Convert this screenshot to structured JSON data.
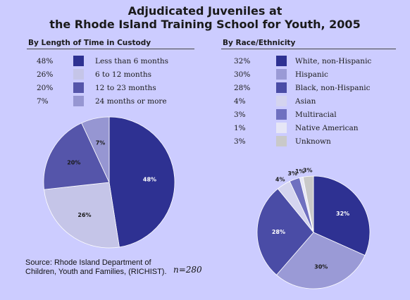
{
  "title_line1": "Adjudicated Juveniles at",
  "title_line2": "the Rhode Island Training School for Youth, 2005",
  "source": "Source: Rhode Island Department of Children, Youth and Families, (RICHIST).",
  "n_label": "n=280",
  "chart_data": [
    {
      "type": "pie",
      "title": "By Length of Time in Custody",
      "categories": [
        "Less than 6 months",
        "6 to 12 months",
        "12 to 23 months",
        "24 months or more"
      ],
      "values": [
        48,
        26,
        20,
        7
      ],
      "value_labels": [
        "48%",
        "26%",
        "20%",
        "7%"
      ],
      "colors": [
        "#2e3192",
        "#c5c5e8",
        "#5555aa",
        "#9696d2"
      ],
      "label_colors": [
        "#ffffff",
        "#1a1a1a",
        "#1a1a1a",
        "#1a1a1a"
      ],
      "slice_order": [
        0,
        1,
        2,
        3
      ],
      "legend_placement": "top"
    },
    {
      "type": "pie",
      "title": "By Race/Ethnicity",
      "categories": [
        "White, non-Hispanic",
        "Hispanic",
        "Black, non-Hispanic",
        "Asian",
        "Multiracial",
        "Native American",
        "Unknown"
      ],
      "values": [
        32,
        30,
        28,
        4,
        3,
        1,
        3
      ],
      "value_labels": [
        "32%",
        "30%",
        "28%",
        "4%",
        "3%",
        "1%",
        "3%"
      ],
      "colors": [
        "#2e3192",
        "#9a9ad6",
        "#4a4ca6",
        "#d4d4ef",
        "#6f70c0",
        "#e6e6f6",
        "#c9c9c9"
      ],
      "label_colors": [
        "#ffffff",
        "#1a1a1a",
        "#ffffff",
        "#1a1a1a",
        "#1a1a1a",
        "#1a1a1a",
        "#1a1a1a"
      ],
      "legend_placement": "top"
    }
  ]
}
